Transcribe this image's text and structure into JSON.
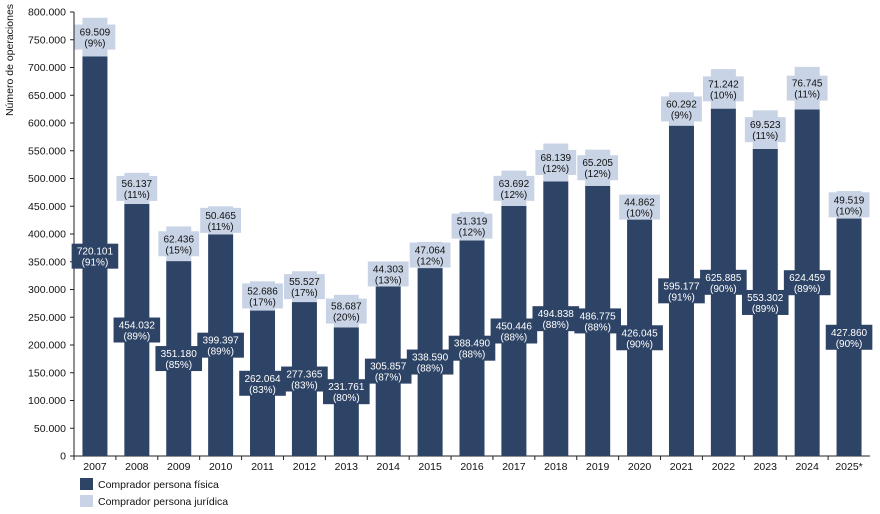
{
  "chart_data": {
    "type": "bar",
    "stacked": true,
    "ylabel": "Número de operaciones",
    "ylim": [
      0,
      800000
    ],
    "yticks": [
      0,
      50000,
      100000,
      150000,
      200000,
      250000,
      300000,
      350000,
      400000,
      450000,
      500000,
      550000,
      600000,
      650000,
      700000,
      750000,
      800000
    ],
    "ytick_labels": [
      "0",
      "50.000",
      "100.000",
      "150.000",
      "200.000",
      "250.000",
      "300.000",
      "350.000",
      "400.000",
      "450.000",
      "500.000",
      "550.000",
      "600.000",
      "650.000",
      "700.000",
      "750.000",
      "800.000"
    ],
    "categories": [
      "2007",
      "2008",
      "2009",
      "2010",
      "2011",
      "2012",
      "2013",
      "2014",
      "2015",
      "2016",
      "2017",
      "2018",
      "2019",
      "2020",
      "2021",
      "2022",
      "2023",
      "2024",
      "2025*"
    ],
    "grid": false,
    "legend_position": "bottom-left",
    "series": [
      {
        "name": "Comprador persona física",
        "color": "#2e4466",
        "values": [
          720101,
          454032,
          351180,
          399397,
          262064,
          277365,
          231761,
          305857,
          338590,
          388490,
          450446,
          494838,
          486775,
          426045,
          595177,
          625885,
          553302,
          624459,
          427860
        ],
        "labels": [
          "720.101",
          "454.032",
          "351.180",
          "399.397",
          "262.064",
          "277.365",
          "231.761",
          "305.857",
          "338.590",
          "388.490",
          "450.446",
          "494.838",
          "486.775",
          "426.045",
          "595.177",
          "625.885",
          "553.302",
          "624.459",
          "427.860"
        ],
        "pcts": [
          "(91%)",
          "(89%)",
          "(85%)",
          "(89%)",
          "(83%)",
          "(83%)",
          "(80%)",
          "(87%)",
          "(88%)",
          "(88%)",
          "(88%)",
          "(88%)",
          "(88%)",
          "(90%)",
          "(91%)",
          "(90%)",
          "(89%)",
          "(89%)",
          "(90%)"
        ]
      },
      {
        "name": "Comprador persona jurídica",
        "color": "#c8d3e5",
        "values": [
          69509,
          56137,
          62436,
          50465,
          52686,
          55527,
          58687,
          44303,
          47064,
          51319,
          63692,
          68139,
          65205,
          44862,
          60292,
          71242,
          69523,
          76745,
          49519
        ],
        "labels": [
          "69.509",
          "56.137",
          "62.436",
          "50.465",
          "52.686",
          "55.527",
          "58.687",
          "44.303",
          "47.064",
          "51.319",
          "63.692",
          "68.139",
          "65.205",
          "44.862",
          "60.292",
          "71.242",
          "69.523",
          "76.745",
          "49.519"
        ],
        "pcts": [
          "(9%)",
          "(11%)",
          "(15%)",
          "(11%)",
          "(17%)",
          "(17%)",
          "(20%)",
          "(13%)",
          "(12%)",
          "(12%)",
          "(12%)",
          "(12%)",
          "(12%)",
          "(10%)",
          "(9%)",
          "(10%)",
          "(11%)",
          "(11%)",
          "(10%)"
        ]
      }
    ]
  }
}
